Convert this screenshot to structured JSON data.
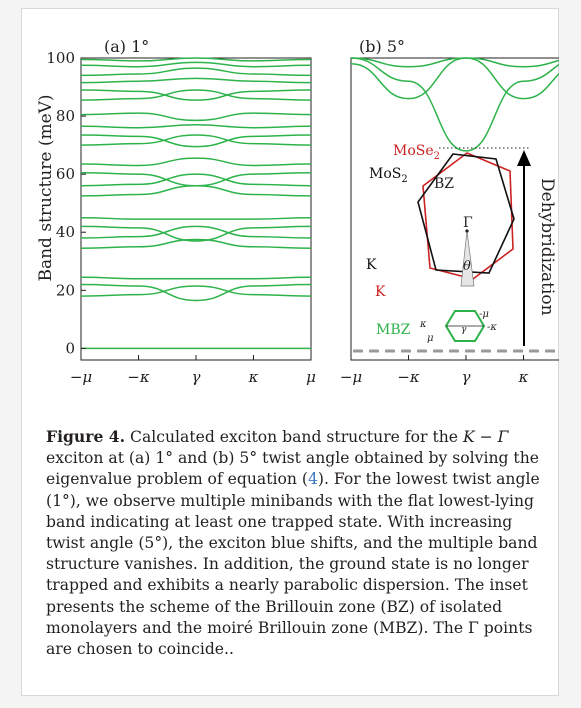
{
  "figure": {
    "colors": {
      "band": "#2db34a",
      "mose2": "#cc2222",
      "mos2": "#111111",
      "text": "#231f20",
      "link": "#3a78c3",
      "baseline": "#999999"
    },
    "ylabel": "Band structure (meV)",
    "panel_a": {
      "label": "(a) 1°"
    },
    "panel_b": {
      "label": "(b) 5°"
    },
    "inset": {
      "mose2_label": "MoSe",
      "mose2_sub": "2",
      "mos2_label": "MoS",
      "mos2_sub": "2",
      "bz_label": "BZ",
      "gamma_label": "Γ",
      "theta_label": "θ",
      "k_black": "K",
      "k_red": "K",
      "mbz_label": "MBZ",
      "mbz_kappa_left": "κ",
      "mbz_mu_left": "μ",
      "mbz_gamma": "γ",
      "mbz_minus_mu": "-μ",
      "mbz_minus_kappa": "-κ"
    },
    "arrow_label": "Dehybridization"
  },
  "chart_data": [
    {
      "type": "line",
      "title": "(a) 1°",
      "ylabel": "Band structure (meV)",
      "x_ticks": [
        "−μ",
        "−κ",
        "γ",
        "κ",
        "μ"
      ],
      "y_ticks": [
        0,
        20,
        40,
        60,
        80,
        100
      ],
      "ylim": [
        -4,
        100
      ],
      "series": [
        {
          "values": [
            0.0,
            0.0,
            0.0,
            0.0,
            0.0
          ]
        },
        {
          "values": [
            18.0,
            18.5,
            21.5,
            18.5,
            18.0
          ]
        },
        {
          "values": [
            22.0,
            21.5,
            16.5,
            21.5,
            22.0
          ]
        },
        {
          "values": [
            24.5,
            24.0,
            24.0,
            24.0,
            24.5
          ]
        },
        {
          "values": [
            34.5,
            35.0,
            37.5,
            35.0,
            34.5
          ]
        },
        {
          "values": [
            38.0,
            38.5,
            42.0,
            38.5,
            38.0
          ]
        },
        {
          "values": [
            42.0,
            41.5,
            37.0,
            41.5,
            42.0
          ]
        },
        {
          "values": [
            45.0,
            44.5,
            44.5,
            44.5,
            45.0
          ]
        },
        {
          "values": [
            52.5,
            53.0,
            56.0,
            53.0,
            52.5
          ]
        },
        {
          "values": [
            56.0,
            56.5,
            60.0,
            56.5,
            56.0
          ]
        },
        {
          "values": [
            60.5,
            60.0,
            56.0,
            60.0,
            60.5
          ]
        },
        {
          "values": [
            63.5,
            63.0,
            65.5,
            63.0,
            63.5
          ]
        },
        {
          "values": [
            70.0,
            70.5,
            73.5,
            70.5,
            70.0
          ]
        },
        {
          "values": [
            73.5,
            73.0,
            69.5,
            73.0,
            73.5
          ]
        },
        {
          "values": [
            76.5,
            76.0,
            77.0,
            76.0,
            76.5
          ]
        },
        {
          "values": [
            80.5,
            81.0,
            78.5,
            81.0,
            80.5
          ]
        },
        {
          "values": [
            85.5,
            86.0,
            89.0,
            86.0,
            85.5
          ]
        },
        {
          "values": [
            89.0,
            88.5,
            85.5,
            88.5,
            89.0
          ]
        },
        {
          "values": [
            91.5,
            92.0,
            93.0,
            92.0,
            91.5
          ]
        },
        {
          "values": [
            94.0,
            94.5,
            96.5,
            94.5,
            94.0
          ]
        },
        {
          "values": [
            97.5,
            97.0,
            98.5,
            97.0,
            97.5
          ]
        },
        {
          "values": [
            99.5,
            99.0,
            100.0,
            99.0,
            99.5
          ]
        }
      ]
    },
    {
      "type": "line",
      "title": "(b) 5°",
      "x_ticks": [
        "−μ",
        "−κ",
        "γ",
        "κ",
        "μ"
      ],
      "ylim": [
        -4,
        100
      ],
      "series": [
        {
          "values": [
            100.0,
            92.0,
            68.0,
            92.0,
            100.0
          ]
        },
        {
          "values": [
            98.0,
            86.0,
            100.0,
            86.0,
            98.0
          ]
        },
        {
          "values": [
            100.0,
            97.0,
            100.0,
            97.0,
            100.0
          ]
        }
      ],
      "baseline": 0,
      "annotation": "Dehybridization"
    }
  ],
  "caption": {
    "label": "Figure 4.",
    "t1": " Calculated exciton band structure for the ",
    "kg": "K − Γ",
    "t2": " exciton at (a) 1° and (b) 5° twist angle obtained by solving the eigenvalue problem of equation (",
    "ref": "4",
    "t3": "). For the lowest twist angle (1°), we observe multiple minibands with the flat lowest-lying band indicating at least one trapped state. With increasing twist angle (5°), the exciton blue shifts, and the multiple band structure vanishes. In addition, the ground state is no longer trapped and exhibits a nearly parabolic dispersion. The inset presents the scheme of the Brillouin zone (BZ) of isolated monolayers and the moiré Brillouin zone (MBZ). The Γ points are chosen to coincide.."
  }
}
